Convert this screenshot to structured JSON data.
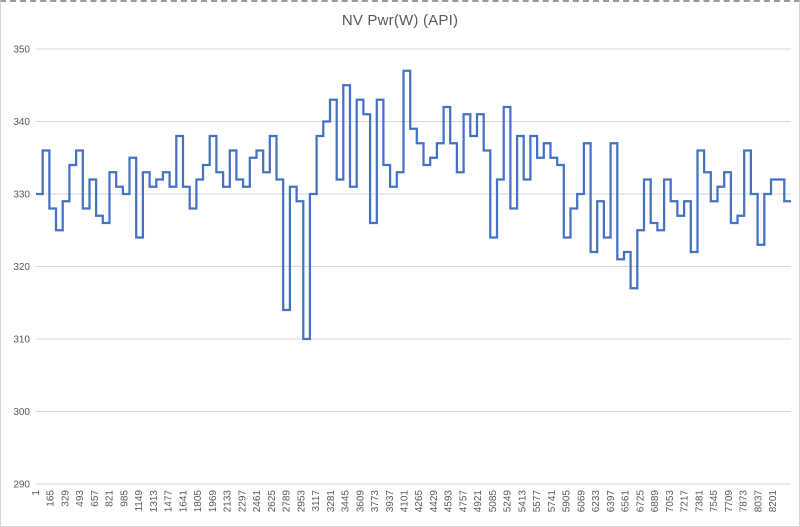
{
  "chart_data": {
    "type": "line",
    "line_style": "step-after",
    "title": "NV Pwr(W) (API)",
    "xlabel": "",
    "ylabel": "",
    "ylim": [
      290,
      350
    ],
    "y_ticks": [
      290,
      300,
      310,
      320,
      330,
      340,
      350
    ],
    "x_tick_labels": [
      "1",
      "165",
      "329",
      "493",
      "657",
      "821",
      "985",
      "1149",
      "1313",
      "1477",
      "1641",
      "1805",
      "1969",
      "2133",
      "2297",
      "2461",
      "2625",
      "2789",
      "2953",
      "3117",
      "3281",
      "3445",
      "3609",
      "3773",
      "3937",
      "4101",
      "4265",
      "4429",
      "4593",
      "4757",
      "4921",
      "5085",
      "5249",
      "5413",
      "5577",
      "5741",
      "5905",
      "6069",
      "6233",
      "6397",
      "6561",
      "6725",
      "6889",
      "7053",
      "7217",
      "7381",
      "7545",
      "7709",
      "7873",
      "8037",
      "8201"
    ],
    "x_tick_label_rotation_deg": -90,
    "grid": "horizontal",
    "legend": "none",
    "series": [
      {
        "name": "NV Pwr(W) (API)",
        "color": "#4472C4",
        "values_are_equal_width_steps": true,
        "values": [
          330,
          336,
          328,
          325,
          329,
          334,
          336,
          328,
          332,
          327,
          326,
          333,
          331,
          330,
          335,
          324,
          333,
          331,
          332,
          333,
          331,
          338,
          331,
          328,
          332,
          334,
          338,
          333,
          331,
          336,
          332,
          331,
          335,
          336,
          333,
          338,
          332,
          314,
          331,
          329,
          310,
          330,
          338,
          340,
          343,
          332,
          345,
          331,
          343,
          341,
          326,
          343,
          334,
          331,
          333,
          347,
          339,
          337,
          334,
          335,
          337,
          342,
          337,
          333,
          341,
          338,
          341,
          336,
          324,
          332,
          342,
          328,
          338,
          332,
          338,
          335,
          337,
          335,
          334,
          324,
          328,
          330,
          337,
          322,
          329,
          324,
          337,
          321,
          322,
          317,
          325,
          332,
          326,
          325,
          332,
          329,
          327,
          329,
          322,
          336,
          333,
          329,
          331,
          333,
          326,
          327,
          336,
          330,
          323,
          330,
          332,
          332,
          329
        ]
      }
    ],
    "colors": {
      "series_line": "#4472C4",
      "gridline": "#d9d9d9",
      "axis_text": "#595959",
      "title_text": "#595959",
      "chart_border": "#d9d9d9",
      "top_dashed_border": "#9a9a9a",
      "background": "#ffffff"
    }
  }
}
